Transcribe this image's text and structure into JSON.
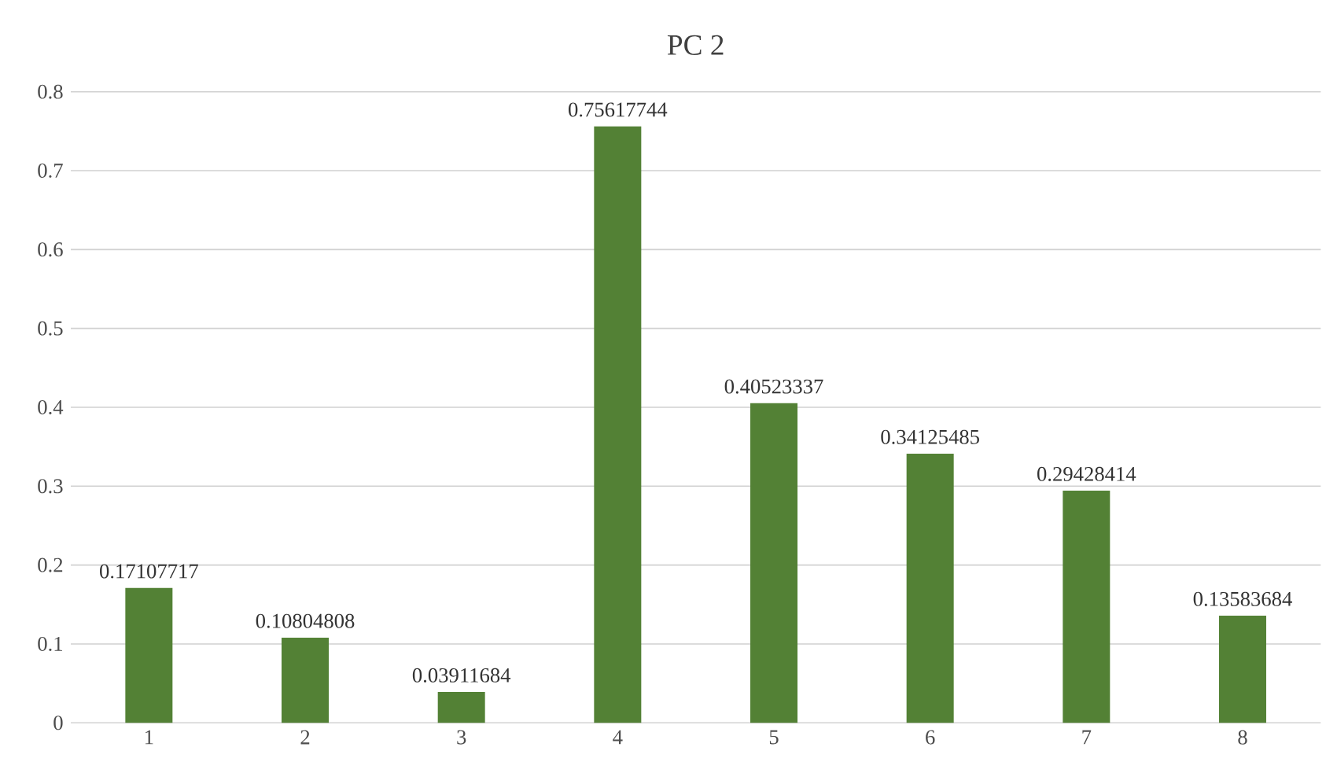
{
  "chart_data": {
    "type": "bar",
    "title": "PC 2",
    "categories": [
      "1",
      "2",
      "3",
      "4",
      "5",
      "6",
      "7",
      "8"
    ],
    "values": [
      0.17107717,
      0.10804808,
      0.03911684,
      0.75617744,
      0.40523337,
      0.34125485,
      0.29428414,
      0.13583684
    ],
    "color": "#538135",
    "ylim": [
      0,
      0.8
    ],
    "yticks": [
      0,
      0.1,
      0.2,
      0.3,
      0.4,
      0.5,
      0.6,
      0.7,
      0.8
    ],
    "grid": "y",
    "data_labels": true
  }
}
